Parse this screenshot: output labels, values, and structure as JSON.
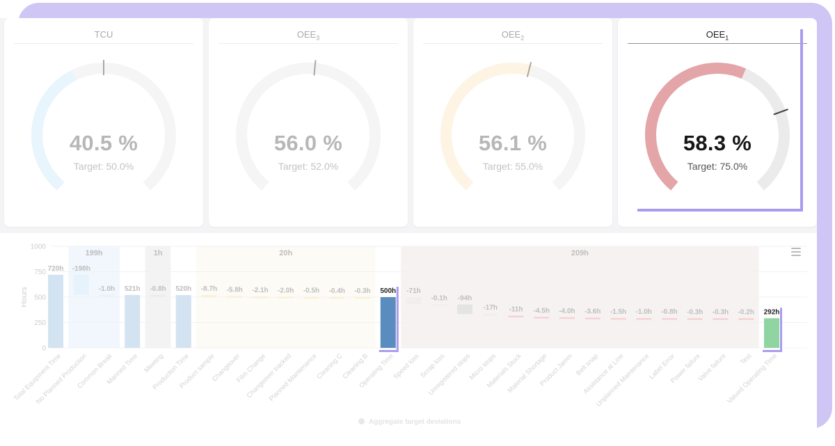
{
  "kpis": [
    {
      "title": "TCU",
      "sub": "",
      "value": "40.5 %",
      "target": "Target: 50.0%",
      "fraction": 0.405,
      "target_fraction": 0.5,
      "color": "#e8f5fd",
      "active": false
    },
    {
      "title": "OEE",
      "sub": "3",
      "value": "56.0 %",
      "target": "Target: 52.0%",
      "fraction": 0.56,
      "target_fraction": 0.52,
      "color": "#f5f5f5",
      "active": false
    },
    {
      "title": "OEE",
      "sub": "2",
      "value": "56.1 %",
      "target": "Target: 55.0%",
      "fraction": 0.561,
      "target_fraction": 0.55,
      "color": "#fdf4e4",
      "active": false
    },
    {
      "title": "OEE",
      "sub": "1",
      "value": "58.3 %",
      "target": "Target: 75.0%",
      "fraction": 0.583,
      "target_fraction": 0.75,
      "color": "#e3a5a7",
      "active": true
    }
  ],
  "chart_data": {
    "type": "bar",
    "chart_style": "waterfall",
    "ylabel": "Hours",
    "y_ticks": [
      "1000",
      "750",
      "500",
      "250",
      "0"
    ],
    "ylim": [
      0,
      1000
    ],
    "categories": [
      "Total Equipment Time",
      "No Planned Production",
      "Common Break",
      "Manned Time",
      "Meeting",
      "Production Time",
      "Product sample",
      "Changeover",
      "Film Change",
      "Changeover tracked",
      "Planned Maintenance",
      "Cleaning C",
      "Cleaning B",
      "Operating Time",
      "Speed loss",
      "Scrap loss",
      "Unregistered stops",
      "Micro stops",
      "Materials Stuck",
      "Material Shortage",
      "Product Jamm",
      "Belt snap",
      "Assistance at Line",
      "Unplanned Maintenance",
      "Label Error",
      "Power failure",
      "Valve failure",
      "Test",
      "Valued Operating Time"
    ],
    "bars": [
      {
        "label": "720h",
        "bottom": 0,
        "top": 720,
        "color": "#d4e3f1"
      },
      {
        "label": "-198h",
        "bottom": 522,
        "top": 720,
        "color": "#e6f3fc"
      },
      {
        "label": "-1.0h",
        "bottom": 521,
        "top": 522,
        "color": "#e6f3fc"
      },
      {
        "label": "521h",
        "bottom": 0,
        "top": 521,
        "color": "#d4e3f1"
      },
      {
        "label": "-0.8h",
        "bottom": 520,
        "top": 521,
        "color": "#ebebeb"
      },
      {
        "label": "520h",
        "bottom": 0,
        "top": 520,
        "color": "#d4e3f1"
      },
      {
        "label": "-8.7h",
        "bottom": 511,
        "top": 520,
        "color": "#fcefd9"
      },
      {
        "label": "-5.8h",
        "bottom": 506,
        "top": 511,
        "color": "#fcefd9"
      },
      {
        "label": "-2.1h",
        "bottom": 504,
        "top": 506,
        "color": "#fcefd9"
      },
      {
        "label": "-2.0h",
        "bottom": 502,
        "top": 504,
        "color": "#fcefd9"
      },
      {
        "label": "-0.5h",
        "bottom": 501,
        "top": 502,
        "color": "#fcefd9"
      },
      {
        "label": "-0.4h",
        "bottom": 500.5,
        "top": 501,
        "color": "#fcefd9"
      },
      {
        "label": "-0.3h",
        "bottom": 500,
        "top": 500.5,
        "color": "#fcefd9"
      },
      {
        "label": "500h",
        "bottom": 0,
        "top": 500,
        "color": "#5b8cc0",
        "highlight": true
      },
      {
        "label": "-71h",
        "bottom": 429,
        "top": 500,
        "color": "#f3eeee"
      },
      {
        "label": "-0.1h",
        "bottom": 428.5,
        "top": 429,
        "color": "#f3eeee"
      },
      {
        "label": "-94h",
        "bottom": 334,
        "top": 428,
        "color": "#e4e4e4"
      },
      {
        "label": "-17h",
        "bottom": 317,
        "top": 334,
        "color": "#f3eeee"
      },
      {
        "label": "-11h",
        "bottom": 306,
        "top": 317,
        "color": "#f5d2d4"
      },
      {
        "label": "-4.5h",
        "bottom": 302,
        "top": 306,
        "color": "#f5d2d4"
      },
      {
        "label": "-4.0h",
        "bottom": 298,
        "top": 302,
        "color": "#f5d2d4"
      },
      {
        "label": "-3.6h",
        "bottom": 294,
        "top": 298,
        "color": "#f5d2d4"
      },
      {
        "label": "-1.5h",
        "bottom": 293,
        "top": 294.5,
        "color": "#f5d2d4"
      },
      {
        "label": "-1.0h",
        "bottom": 292,
        "top": 293.5,
        "color": "#f5d2d4"
      },
      {
        "label": "-0.8h",
        "bottom": 291.5,
        "top": 293,
        "color": "#f5d2d4"
      },
      {
        "label": "-0.3h",
        "bottom": 291,
        "top": 292.5,
        "color": "#f5d2d4"
      },
      {
        "label": "-0.3h",
        "bottom": 291,
        "top": 292.5,
        "color": "#f5d2d4"
      },
      {
        "label": "-0.2h",
        "bottom": 291,
        "top": 292.5,
        "color": "#f5d2d4"
      },
      {
        "label": "292h",
        "bottom": 0,
        "top": 292,
        "color": "#8fd4a1",
        "highlight": true
      }
    ],
    "groups": [
      {
        "label": "199h",
        "from": 1,
        "to": 2,
        "color": "#f1f7fd"
      },
      {
        "label": "1h",
        "from": 4,
        "to": 4,
        "color": "#f3f3f3"
      },
      {
        "label": "20h",
        "from": 6,
        "to": 12,
        "color": "#fdfbf5"
      },
      {
        "label": "209h",
        "from": 14,
        "to": 27,
        "color": "#f7f2f2"
      }
    ],
    "legend": "Aggregate target deviations",
    "grid": true
  }
}
